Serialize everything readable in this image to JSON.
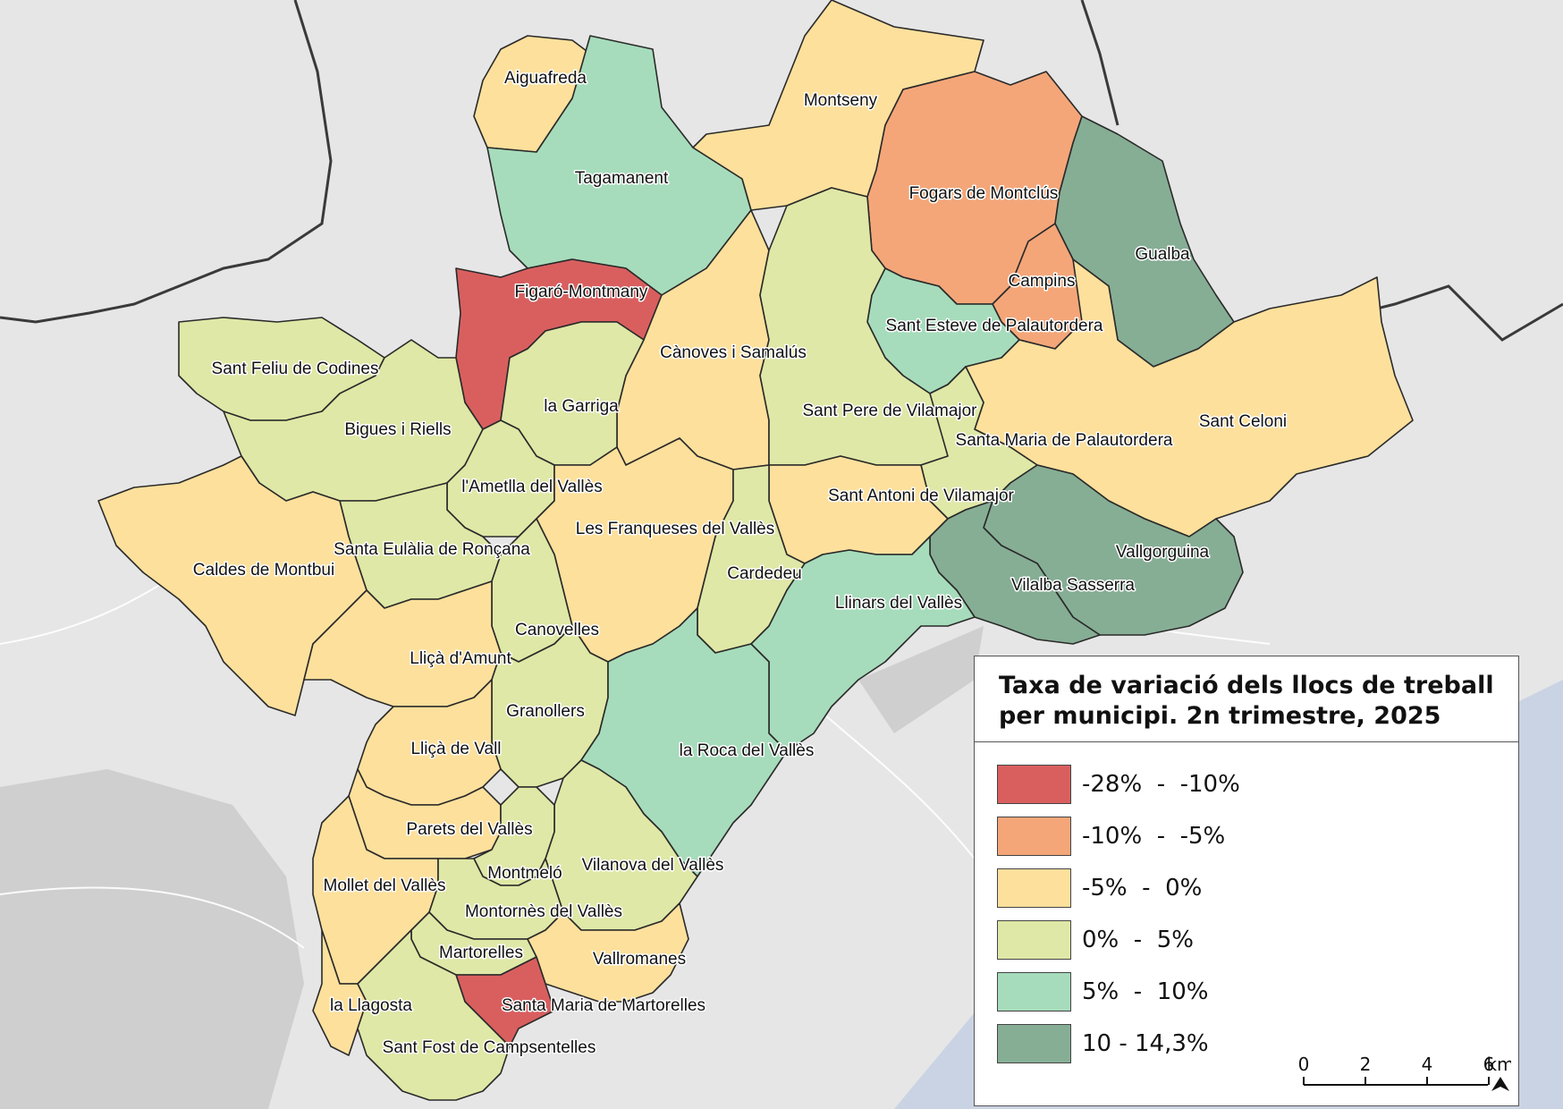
{
  "legend": {
    "title": "Taxa de variació dels llocs de treball per municipi. 2n trimestre, 2025",
    "classes": [
      {
        "label": "-28%  -  -10%",
        "color": "#d95f5f"
      },
      {
        "label": "-10%  -  -5%",
        "color": "#f4a679"
      },
      {
        "label": "-5%  -  0%",
        "color": "#fde09c"
      },
      {
        "label": "0%  -  5%",
        "color": "#dfe8a6"
      },
      {
        "label": "5%  -  10%",
        "color": "#a6dcbb"
      },
      {
        "label": "10 - 14,3%",
        "color": "#86ae95"
      }
    ]
  },
  "scale": {
    "ticks": [
      "0",
      "2",
      "4",
      "6"
    ],
    "unit": "km"
  },
  "north_arrow": "north-arrow-icon",
  "municipalities": [
    {
      "id": "aiguafreda",
      "name": "Aiguafreda",
      "class": 2
    },
    {
      "id": "tagamanent",
      "name": "Tagamanent",
      "class": 4
    },
    {
      "id": "montseny",
      "name": "Montseny",
      "class": 2
    },
    {
      "id": "fogars",
      "name": "Fogars de Montclús",
      "class": 1
    },
    {
      "id": "gualba",
      "name": "Gualba",
      "class": 5
    },
    {
      "id": "campins",
      "name": "Campins",
      "class": 1
    },
    {
      "id": "figaro",
      "name": "Figaró-Montmany",
      "class": 0
    },
    {
      "id": "canoves",
      "name": "Cànoves i Samalús",
      "class": 2
    },
    {
      "id": "santesteve",
      "name": "Sant Esteve de Palautordera",
      "class": 4
    },
    {
      "id": "santfeliu",
      "name": "Sant Feliu de Codines",
      "class": 3
    },
    {
      "id": "lagarriga",
      "name": "la Garriga",
      "class": 3
    },
    {
      "id": "santpere",
      "name": "Sant Pere de Vilamajor",
      "class": 3
    },
    {
      "id": "santceloni",
      "name": "Sant Celoni",
      "class": 2
    },
    {
      "id": "bigues",
      "name": "Bigues i Riells",
      "class": 3
    },
    {
      "id": "santamariapal",
      "name": "Santa Maria de Palautordera",
      "class": 3
    },
    {
      "id": "ametlla",
      "name": "l'Ametlla del Vallès",
      "class": 3
    },
    {
      "id": "santantoni",
      "name": "Sant Antoni de Vilamajor",
      "class": 2
    },
    {
      "id": "franqueses",
      "name": "Les Franqueses del Vallès",
      "class": 2
    },
    {
      "id": "vallgorguina",
      "name": "Vallgorguina",
      "class": 5
    },
    {
      "id": "santaeulalia",
      "name": "Santa Eulàlia de Ronçana",
      "class": 3
    },
    {
      "id": "caldes",
      "name": "Caldes de Montbui",
      "class": 2
    },
    {
      "id": "cardedeu",
      "name": "Cardedeu",
      "class": 3
    },
    {
      "id": "vilalba",
      "name": "Vilalba Sasserra",
      "class": 5
    },
    {
      "id": "llinars",
      "name": "Llinars del Vallès",
      "class": 4
    },
    {
      "id": "canovelles",
      "name": "Canovelles",
      "class": 3
    },
    {
      "id": "llicamunt",
      "name": "Lliçà d'Amunt",
      "class": 2
    },
    {
      "id": "granollers",
      "name": "Granollers",
      "class": 3
    },
    {
      "id": "laroca",
      "name": "la Roca del Vallès",
      "class": 4
    },
    {
      "id": "llicavall",
      "name": "Lliçà de Vall",
      "class": 2
    },
    {
      "id": "parets",
      "name": "Parets del Vallès",
      "class": 2
    },
    {
      "id": "vilanova",
      "name": "Vilanova del Vallès",
      "class": 3
    },
    {
      "id": "montmelo",
      "name": "Montmeló",
      "class": 3
    },
    {
      "id": "mollet",
      "name": "Mollet del Vallès",
      "class": 2
    },
    {
      "id": "montornes",
      "name": "Montornès del Vallès",
      "class": 3
    },
    {
      "id": "martorelles",
      "name": "Martorelles",
      "class": 3
    },
    {
      "id": "vallromanes",
      "name": "Vallromanes",
      "class": 2
    },
    {
      "id": "llagosta",
      "name": "la Llagosta",
      "class": 2
    },
    {
      "id": "santamariamart",
      "name": "Santa Maria de Martorelles",
      "class": 0
    },
    {
      "id": "santfost",
      "name": "Sant Fost de Campsentelles",
      "class": 3
    }
  ]
}
